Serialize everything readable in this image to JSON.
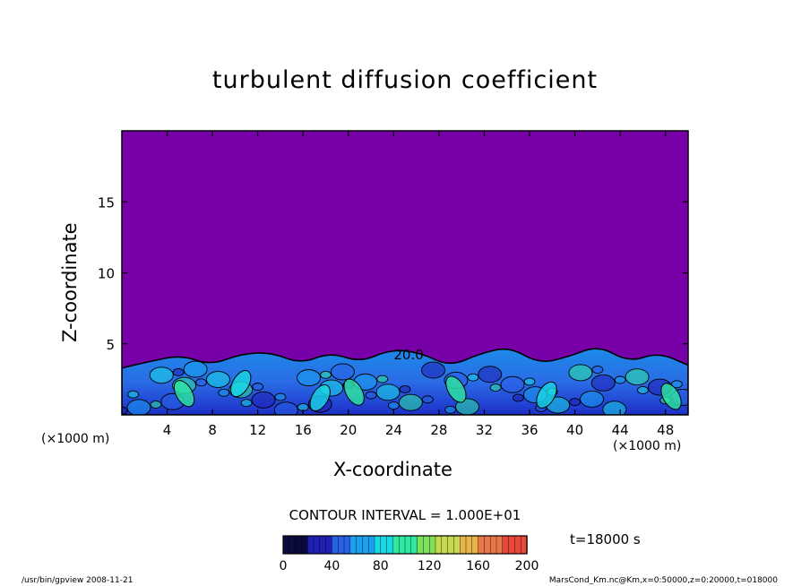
{
  "chart_data": {
    "type": "heatmap",
    "title": "turbulent diffusion coefficient",
    "xlabel": "X-coordinate",
    "ylabel": "Z-coordinate",
    "x_unit_label": "(×1000 m)",
    "xlim": [
      0,
      50
    ],
    "ylim": [
      0,
      20
    ],
    "x_ticks": [
      4,
      8,
      12,
      16,
      20,
      24,
      28,
      32,
      36,
      40,
      44,
      48
    ],
    "y_ticks": [
      5,
      10,
      15
    ],
    "contour_interval_label": "CONTOUR INTERVAL = 1.000E+01",
    "contour_label": "20.0",
    "contour_label_x": 24,
    "contour_label_z": 3.9,
    "colorbar": {
      "min": 0,
      "max": 200,
      "ticks": [
        0,
        40,
        80,
        120,
        160,
        200
      ],
      "colors": [
        "#0a0a3c",
        "#1f1fb4",
        "#2860e6",
        "#1aa0f0",
        "#19d8e6",
        "#2ee8a0",
        "#7fe05a",
        "#c8d850",
        "#e8b448",
        "#e87848",
        "#e84838"
      ]
    },
    "background_color": "#7700a8",
    "boundary_layer_top_z": [
      3.3,
      3.8,
      4.2,
      3.5,
      4.3,
      4.4,
      3.6,
      4.4,
      3.7,
      4.6,
      4.4,
      3.4,
      4.3,
      4.8,
      3.6,
      4.1,
      4.9,
      3.7,
      4.4,
      3.5
    ],
    "time_label": "t=18000 s"
  },
  "footer": {
    "left": "/usr/bin/gpview   2008-11-21",
    "right": "MarsCond_Km.nc@Km,x=0:50000,z=0:20000,t=018000"
  }
}
